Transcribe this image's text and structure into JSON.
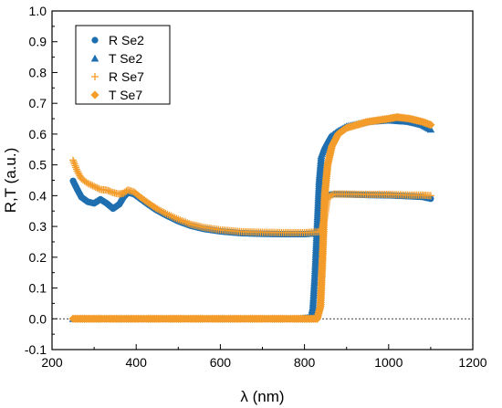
{
  "chart_data": {
    "type": "scatter",
    "xlabel": "λ (nm)",
    "ylabel": "R,T (a.u.)",
    "xlim": [
      200,
      1200
    ],
    "ylim": [
      -0.1,
      1.0
    ],
    "xticks": [
      200,
      400,
      600,
      800,
      1000,
      1200
    ],
    "yticks": [
      -0.1,
      0.0,
      0.1,
      0.2,
      0.3,
      0.4,
      0.5,
      0.6,
      0.7,
      0.8,
      0.9,
      1.0
    ],
    "ytick_labels": [
      "-0.1",
      "0.0",
      "0.1",
      "0.2",
      "0.3",
      "0.4",
      "0.5",
      "0.6",
      "0.7",
      "0.8",
      "0.9",
      "1.0"
    ],
    "xtick_labels": [
      "200",
      "400",
      "600",
      "800",
      "1000",
      "1200"
    ],
    "reference_line": {
      "y": 0.0,
      "style": "dotted"
    },
    "legend_position": "top-left",
    "series": [
      {
        "name": "R Se2",
        "marker": "circle",
        "color": "#1f6fb0",
        "points": [
          [
            250,
            0.448
          ],
          [
            260,
            0.42
          ],
          [
            270,
            0.395
          ],
          [
            285,
            0.38
          ],
          [
            300,
            0.375
          ],
          [
            315,
            0.388
          ],
          [
            330,
            0.375
          ],
          [
            345,
            0.358
          ],
          [
            360,
            0.372
          ],
          [
            370,
            0.395
          ],
          [
            380,
            0.41
          ],
          [
            395,
            0.405
          ],
          [
            410,
            0.39
          ],
          [
            430,
            0.37
          ],
          [
            450,
            0.352
          ],
          [
            470,
            0.337
          ],
          [
            500,
            0.317
          ],
          [
            530,
            0.302
          ],
          [
            560,
            0.292
          ],
          [
            600,
            0.284
          ],
          [
            650,
            0.278
          ],
          [
            700,
            0.276
          ],
          [
            750,
            0.275
          ],
          [
            800,
            0.275
          ],
          [
            830,
            0.278
          ],
          [
            838,
            0.31
          ],
          [
            845,
            0.39
          ],
          [
            855,
            0.402
          ],
          [
            870,
            0.405
          ],
          [
            900,
            0.404
          ],
          [
            950,
            0.402
          ],
          [
            1000,
            0.401
          ],
          [
            1050,
            0.398
          ],
          [
            1080,
            0.396
          ],
          [
            1100,
            0.39
          ]
        ]
      },
      {
        "name": "T Se2",
        "marker": "triangle",
        "color": "#1f6fb0",
        "points": [
          [
            250,
            0.0
          ],
          [
            300,
            0.0
          ],
          [
            400,
            0.0
          ],
          [
            500,
            0.0
          ],
          [
            600,
            0.0
          ],
          [
            700,
            0.0
          ],
          [
            790,
            0.0
          ],
          [
            815,
            0.005
          ],
          [
            820,
            0.04
          ],
          [
            825,
            0.15
          ],
          [
            830,
            0.3
          ],
          [
            835,
            0.45
          ],
          [
            840,
            0.53
          ],
          [
            848,
            0.56
          ],
          [
            860,
            0.59
          ],
          [
            880,
            0.61
          ],
          [
            900,
            0.625
          ],
          [
            950,
            0.64
          ],
          [
            1000,
            0.645
          ],
          [
            1050,
            0.64
          ],
          [
            1080,
            0.63
          ],
          [
            1100,
            0.615
          ]
        ]
      },
      {
        "name": "R Se7",
        "marker": "plus",
        "color": "#f39c2b",
        "points": [
          [
            250,
            0.515
          ],
          [
            260,
            0.48
          ],
          [
            270,
            0.455
          ],
          [
            285,
            0.44
          ],
          [
            300,
            0.43
          ],
          [
            315,
            0.42
          ],
          [
            330,
            0.418
          ],
          [
            345,
            0.41
          ],
          [
            360,
            0.405
          ],
          [
            370,
            0.408
          ],
          [
            380,
            0.418
          ],
          [
            395,
            0.412
          ],
          [
            410,
            0.395
          ],
          [
            430,
            0.375
          ],
          [
            450,
            0.357
          ],
          [
            470,
            0.342
          ],
          [
            500,
            0.323
          ],
          [
            530,
            0.307
          ],
          [
            560,
            0.297
          ],
          [
            600,
            0.289
          ],
          [
            650,
            0.283
          ],
          [
            700,
            0.281
          ],
          [
            750,
            0.28
          ],
          [
            800,
            0.28
          ],
          [
            840,
            0.283
          ],
          [
            848,
            0.33
          ],
          [
            855,
            0.395
          ],
          [
            870,
            0.405
          ],
          [
            900,
            0.405
          ],
          [
            950,
            0.404
          ],
          [
            1000,
            0.404
          ],
          [
            1050,
            0.402
          ],
          [
            1080,
            0.402
          ],
          [
            1100,
            0.4
          ]
        ]
      },
      {
        "name": "T Se7",
        "marker": "diamond",
        "color": "#f39c2b",
        "points": [
          [
            250,
            0.0
          ],
          [
            300,
            0.0
          ],
          [
            400,
            0.0
          ],
          [
            500,
            0.0
          ],
          [
            600,
            0.0
          ],
          [
            700,
            0.0
          ],
          [
            800,
            0.0
          ],
          [
            830,
            0.0
          ],
          [
            838,
            0.04
          ],
          [
            843,
            0.2
          ],
          [
            848,
            0.4
          ],
          [
            855,
            0.5
          ],
          [
            865,
            0.56
          ],
          [
            880,
            0.6
          ],
          [
            900,
            0.62
          ],
          [
            950,
            0.64
          ],
          [
            1000,
            0.65
          ],
          [
            1020,
            0.655
          ],
          [
            1050,
            0.65
          ],
          [
            1080,
            0.64
          ],
          [
            1100,
            0.63
          ]
        ]
      }
    ]
  }
}
